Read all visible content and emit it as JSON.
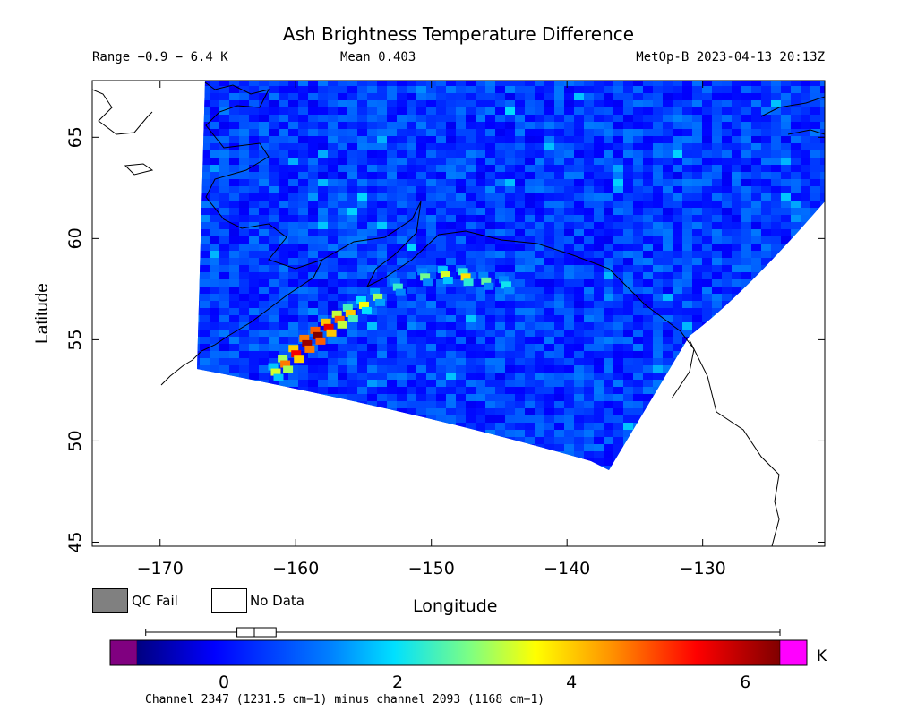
{
  "chart_data": {
    "type": "heatmap",
    "title": "Ash Brightness Temperature Difference",
    "range_text": "Range −0.9 − 6.4 K",
    "mean_text": "Mean 0.403",
    "satellite_text": "MetOp-B 2023-04-13 20:13Z",
    "xlabel": "Longitude",
    "ylabel": "Latitude",
    "xlim": [
      -175,
      -121
    ],
    "ylim": [
      44.8,
      67.8
    ],
    "x_ticks": [
      -170,
      -160,
      -150,
      -140,
      -130
    ],
    "x_tick_labels": [
      "−170",
      "−160",
      "−150",
      "−140",
      "−130"
    ],
    "y_ticks": [
      45,
      50,
      55,
      60,
      65
    ],
    "y_tick_labels": [
      "45",
      "50",
      "55",
      "60",
      "65"
    ],
    "background_value_K": 0.4,
    "ash_plume": [
      {
        "lon": -161.5,
        "lat": 53.4,
        "value_K": 3.3
      },
      {
        "lon": -160.8,
        "lat": 53.8,
        "value_K": 4.6
      },
      {
        "lon": -160.0,
        "lat": 54.3,
        "value_K": 5.5
      },
      {
        "lon": -159.2,
        "lat": 54.8,
        "value_K": 6.2
      },
      {
        "lon": -158.4,
        "lat": 55.2,
        "value_K": 6.4
      },
      {
        "lon": -157.6,
        "lat": 55.6,
        "value_K": 5.6
      },
      {
        "lon": -156.8,
        "lat": 56.0,
        "value_K": 4.8
      },
      {
        "lon": -156.0,
        "lat": 56.3,
        "value_K": 4.0
      },
      {
        "lon": -155.0,
        "lat": 56.7,
        "value_K": 3.5
      },
      {
        "lon": -154.0,
        "lat": 57.1,
        "value_K": 3.0
      },
      {
        "lon": -152.5,
        "lat": 57.6,
        "value_K": 2.3
      },
      {
        "lon": -150.5,
        "lat": 58.1,
        "value_K": 2.7
      },
      {
        "lon": -149.0,
        "lat": 58.2,
        "value_K": 3.3
      },
      {
        "lon": -147.5,
        "lat": 58.1,
        "value_K": 3.8
      },
      {
        "lon": -146.0,
        "lat": 57.9,
        "value_K": 2.6
      },
      {
        "lon": -144.5,
        "lat": 57.7,
        "value_K": 2.0
      }
    ],
    "colorbar": {
      "unit": "K",
      "min": -1.3,
      "max": 6.4,
      "ticks": [
        0,
        2,
        4,
        6
      ],
      "tick_labels": [
        "0",
        "2",
        "4",
        "6"
      ],
      "underflow_color": "#800080",
      "overflow_color": "#ff00ff",
      "boxplot": {
        "min": -0.9,
        "q1": 0.15,
        "median": 0.35,
        "q3": 0.6,
        "max": 6.4
      },
      "label": "Channel 2347 (1231.5 cm−1) minus channel 2093 (1168 cm−1)"
    },
    "legend": [
      {
        "label": "QC Fail",
        "color": "#808080"
      },
      {
        "label": "No Data",
        "color": "#ffffff"
      }
    ]
  }
}
